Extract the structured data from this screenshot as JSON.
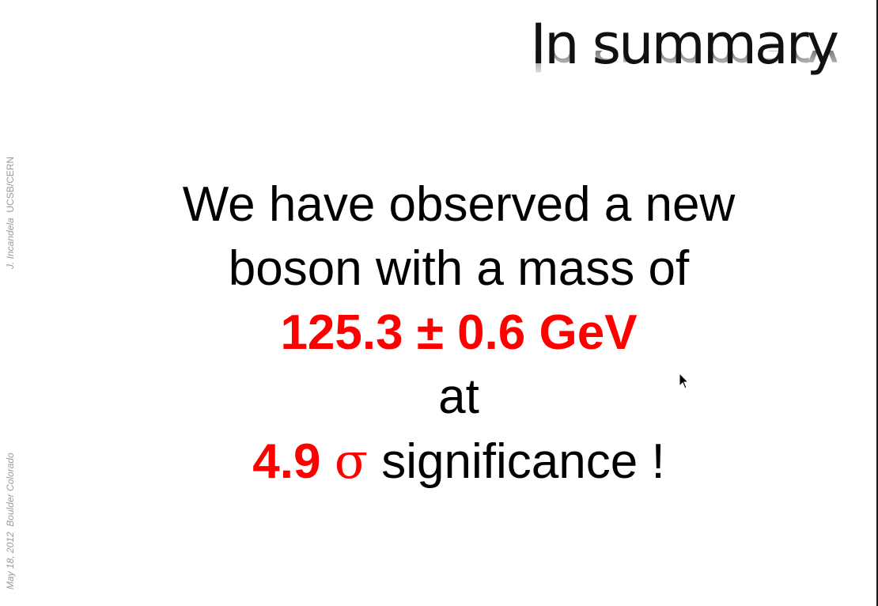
{
  "slide": {
    "title": "In summary",
    "sidebar": {
      "author": "J. Incandela",
      "affiliation": "UCSB/CERN",
      "date": "May 18,  2012",
      "location": "Boulder Colorado"
    },
    "body": {
      "line1": "We have observed a new",
      "line2": "boson with a mass of",
      "mass": "125.3 ± 0.6 GeV",
      "line4": "at",
      "significance_value": "4.9",
      "sigma": "σ",
      "significance_label": "significance !"
    }
  },
  "colors": {
    "accent": "#ff0000",
    "text": "#000000",
    "sidebar_text": "#9a9a9a"
  },
  "icons": [
    "mouse-cursor-icon"
  ]
}
